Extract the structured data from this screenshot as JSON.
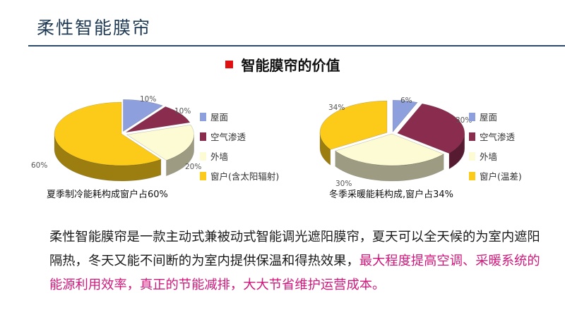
{
  "slide": {
    "title": "柔性智能膜帘",
    "heading": "智能膜帘的价值"
  },
  "colors": {
    "title_rule": "#2b4b6a",
    "heading_marker": "#e01010",
    "highlight_text": "#d0187c"
  },
  "legend_left": [
    "屋面",
    "空气渗透",
    "外墙",
    "窗户(含太阳辐射)"
  ],
  "legend_right": [
    "屋面",
    "空气渗透",
    "外墙",
    "窗户(温差)"
  ],
  "chart_data": [
    {
      "type": "pie",
      "title": "",
      "caption": "夏季制冷能耗构成窗户占60%",
      "slices": [
        {
          "label": "屋面",
          "value": 10,
          "display": "10%",
          "color": "#8e9fde"
        },
        {
          "label": "空气渗透",
          "value": 10,
          "display": "10%",
          "color": "#8a2c4d"
        },
        {
          "label": "外墙",
          "value": 20,
          "display": "20%",
          "color": "#fdfbd3"
        },
        {
          "label": "窗户(含太阳辐射)",
          "value": 60,
          "display": "60%",
          "color": "#fccb1a"
        }
      ],
      "legend_position": "right"
    },
    {
      "type": "pie",
      "title": "",
      "caption": "冬季采暖能耗构成,窗户占34%",
      "slices": [
        {
          "label": "屋面",
          "value": 6,
          "display": "6%",
          "color": "#8e9fde"
        },
        {
          "label": "空气渗透",
          "value": 30,
          "display": "30%",
          "color": "#8a2c4d"
        },
        {
          "label": "外墙",
          "value": 30,
          "display": "30%",
          "color": "#fdfbd3"
        },
        {
          "label": "窗户(温差)",
          "value": 34,
          "display": "34%",
          "color": "#fccb1a"
        }
      ],
      "legend_position": "right"
    }
  ],
  "body": {
    "normal": "柔性智能膜帘是一款主动式兼被动式智能调光遮阳膜帘，夏天可以全天候的为室内遮阳隔热，冬天又能不间断的为室内提供保温和得热效果，",
    "highlight": "最大程度提高空调、采暖系统的能源利用效率，真正的节能减排，大大节省维护运营成本。"
  }
}
